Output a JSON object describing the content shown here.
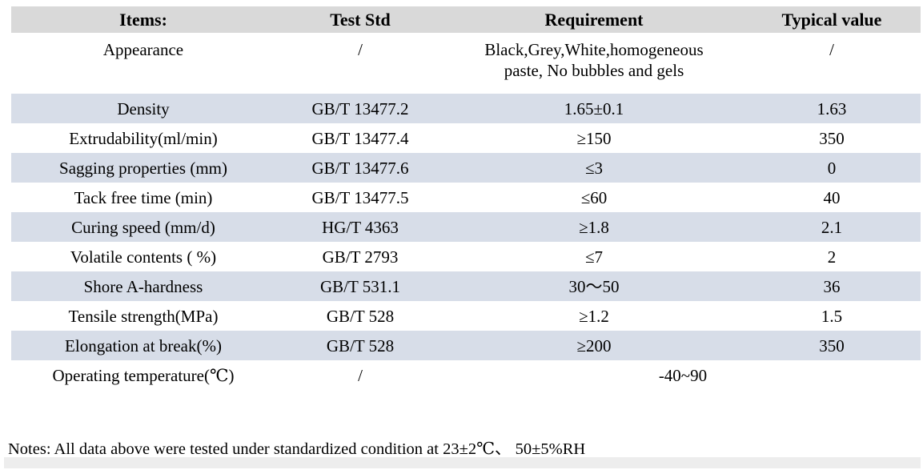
{
  "colors": {
    "header_bg": "#d9d9d9",
    "shaded_row_bg": "#d7dde8",
    "text": "#000000",
    "bottom_strip_bg": "#ededed"
  },
  "table": {
    "headers": [
      "Items:",
      "Test Std",
      "Requirement",
      "Typical value"
    ],
    "rows": [
      {
        "item": "Appearance",
        "std": "/",
        "req": "Black,Grey,White,homogeneous\npaste, No bubbles and gels",
        "typ": "/"
      },
      {
        "item": "Density",
        "std": "GB/T 13477.2",
        "req": "1.65±0.1",
        "typ": "1.63"
      },
      {
        "item": "Extrudability(ml/min)",
        "std": "GB/T 13477.4",
        "req": "≥150",
        "typ": "350"
      },
      {
        "item": "Sagging properties (mm)",
        "std": "GB/T 13477.6",
        "req": "≤3",
        "typ": "0"
      },
      {
        "item": "Tack free time (min)",
        "std": "GB/T 13477.5",
        "req": "≤60",
        "typ": "40"
      },
      {
        "item": "Curing speed (mm/d)",
        "std": "HG/T 4363",
        "req": "≥1.8",
        "typ": "2.1"
      },
      {
        "item": "Volatile contents ( %)",
        "std": "GB/T 2793",
        "req": "≤7",
        "typ": "2"
      },
      {
        "item": "Shore A-hardness",
        "std": "GB/T 531.1",
        "req": "30～50",
        "typ": "36"
      },
      {
        "item": "Tensile strength(MPa)",
        "std": "GB/T 528",
        "req": "≥1.2",
        "typ": "1.5"
      },
      {
        "item": "Elongation at break(%)",
        "std": "GB/T 528",
        "req": "≥200",
        "typ": "350"
      },
      {
        "item": "Operating temperature(℃)",
        "std": "/",
        "req": "-40~90"
      }
    ]
  },
  "notes": "Notes: All data above were tested under standardized condition at 23±2℃、 50±5%RH"
}
